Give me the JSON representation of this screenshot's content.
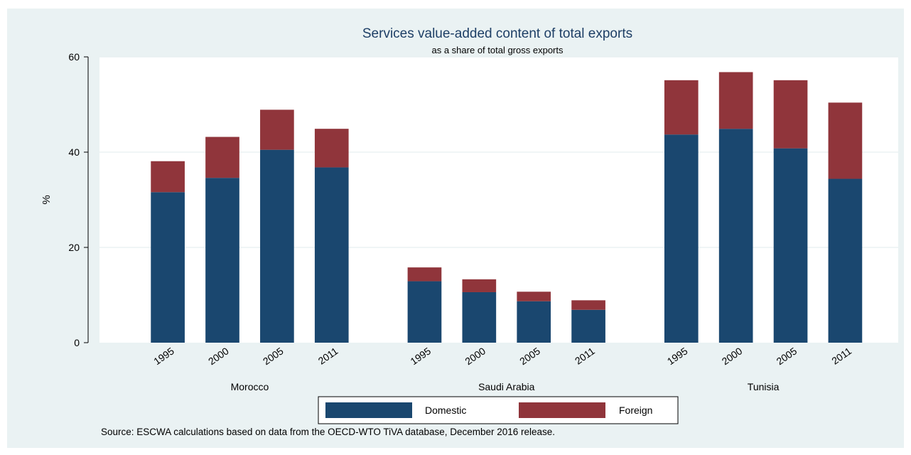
{
  "chart_data": {
    "type": "bar",
    "stacked": true,
    "title": "Services value-added content of total exports",
    "subtitle": "as a share of total gross exports",
    "ylabel": "%",
    "xlabel": "",
    "ylim": [
      0,
      60
    ],
    "yticks": [
      0,
      20,
      40,
      60
    ],
    "groups": [
      {
        "name": "Morocco",
        "categories": [
          "1995",
          "2000",
          "2005",
          "2011"
        ],
        "series": [
          {
            "name": "Domestic",
            "values": [
              31.6,
              34.6,
              40.5,
              36.8
            ]
          },
          {
            "name": "Foreign",
            "values": [
              6.5,
              8.6,
              8.4,
              8.1
            ]
          }
        ]
      },
      {
        "name": "Saudi Arabia",
        "categories": [
          "1995",
          "2000",
          "2005",
          "2011"
        ],
        "series": [
          {
            "name": "Domestic",
            "values": [
              12.9,
              10.6,
              8.7,
              6.9
            ]
          },
          {
            "name": "Foreign",
            "values": [
              2.9,
              2.7,
              2.0,
              2.0
            ]
          }
        ]
      },
      {
        "name": "Tunisia",
        "categories": [
          "1995",
          "2000",
          "2005",
          "2011"
        ],
        "series": [
          {
            "name": "Domestic",
            "values": [
              43.7,
              44.9,
              40.8,
              34.4
            ]
          },
          {
            "name": "Foreign",
            "values": [
              11.4,
              11.9,
              14.3,
              16.0
            ]
          }
        ]
      }
    ],
    "legend": [
      "Domestic",
      "Foreign"
    ],
    "legend_position": "bottom",
    "grid": true,
    "colors": {
      "Domestic": "#1a476f",
      "Foreign": "#90353b"
    },
    "note": "Source: ESCWA calculations based on data from the OECD-WTO TiVA database, December 2016 release."
  }
}
